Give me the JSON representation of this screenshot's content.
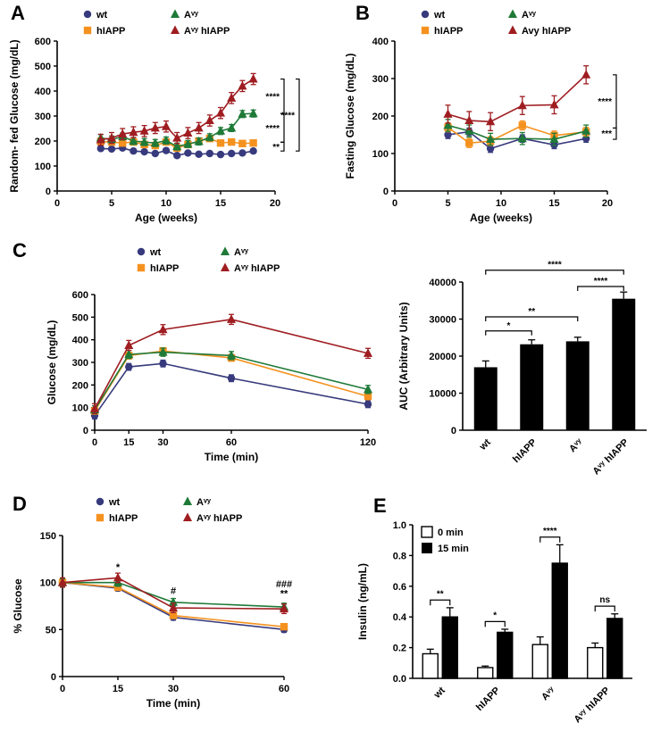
{
  "panels": {
    "A": {
      "letter": "A"
    },
    "B": {
      "letter": "B"
    },
    "C": {
      "letter": "C"
    },
    "D": {
      "letter": "D"
    },
    "E": {
      "letter": "E"
    }
  },
  "colors": {
    "wt": "#373a7c",
    "hIAPP": "#f5921f",
    "avy": "#1f7a38",
    "avy_hiapp": "#9f1d21",
    "bar_fill": "#000000",
    "background": "#ffffff"
  },
  "chart_data": [
    {
      "id": "A",
      "type": "line",
      "ylabel": "Random- fed Glucose (mg/dL)",
      "xlabel": "Age (weeks)",
      "xlim": [
        0,
        20
      ],
      "ylim": [
        0,
        600
      ],
      "xticks": [
        0,
        5,
        10,
        15,
        20
      ],
      "yticks": [
        0,
        100,
        200,
        300,
        400,
        500,
        600
      ],
      "legend_position": "top",
      "x": [
        4,
        5,
        6,
        7,
        8,
        9,
        10,
        11,
        12,
        13,
        14,
        15,
        16,
        17,
        18
      ],
      "series": [
        {
          "name": "wt",
          "marker": "circle",
          "color": "#373a7c",
          "err": 8,
          "values": [
            170,
            168,
            172,
            160,
            157,
            150,
            162,
            142,
            152,
            147,
            150,
            146,
            150,
            152,
            160
          ]
        },
        {
          "name": "hIAPP",
          "marker": "square",
          "color": "#f5921f",
          "err": 10,
          "values": [
            198,
            196,
            192,
            196,
            186,
            182,
            196,
            172,
            186,
            200,
            210,
            192,
            196,
            190,
            192
          ]
        },
        {
          "name": "Aᵛʸ",
          "marker": "triangle",
          "color": "#1f7a38",
          "err": 14,
          "values": [
            212,
            206,
            218,
            200,
            196,
            192,
            202,
            178,
            188,
            198,
            215,
            240,
            252,
            308,
            310
          ]
        },
        {
          "name": "Aᵛʸ hIAPP",
          "marker": "triangle",
          "color": "#9f1d21",
          "err": 22,
          "values": [
            205,
            212,
            228,
            235,
            240,
            252,
            258,
            212,
            232,
            252,
            282,
            312,
            372,
            420,
            448
          ]
        }
      ],
      "brackets": [
        {
          "y1": 448,
          "y2": 310,
          "tier": 1,
          "label": "****"
        },
        {
          "y1": 310,
          "y2": 195,
          "tier": 1,
          "label": "****"
        },
        {
          "y1": 195,
          "y2": 160,
          "tier": 1,
          "label": "**"
        },
        {
          "y1": 448,
          "y2": 160,
          "tier": 2,
          "label": "****"
        }
      ]
    },
    {
      "id": "B",
      "type": "line",
      "ylabel": "Fasting Glucose (mg/dL)",
      "xlabel": "Age (weeks)",
      "xlim": [
        0,
        20
      ],
      "ylim": [
        0,
        400
      ],
      "xticks": [
        0,
        5,
        10,
        15,
        20
      ],
      "yticks": [
        0,
        100,
        200,
        300,
        400
      ],
      "legend_position": "top",
      "x": [
        5,
        7,
        9,
        12,
        15,
        18
      ],
      "series": [
        {
          "name": "wt",
          "marker": "circle",
          "color": "#373a7c",
          "err": 10,
          "values": [
            150,
            158,
            113,
            140,
            123,
            140
          ]
        },
        {
          "name": "hIAPP",
          "marker": "square",
          "color": "#f5921f",
          "err": 12,
          "values": [
            170,
            128,
            133,
            175,
            148,
            158
          ]
        },
        {
          "name": "Aᵛʸ",
          "marker": "triangle",
          "color": "#1f7a38",
          "err": 16,
          "values": [
            175,
            160,
            138,
            140,
            138,
            160
          ]
        },
        {
          "name": "Avy hIAPP",
          "marker": "triangle",
          "color": "#9f1d21",
          "err": 24,
          "values": [
            205,
            188,
            185,
            228,
            230,
            310
          ]
        }
      ],
      "brackets": [
        {
          "y1": 310,
          "y2": 168,
          "tier": 1,
          "label": "****"
        },
        {
          "y1": 168,
          "y2": 138,
          "tier": 1,
          "label": "***"
        }
      ]
    },
    {
      "id": "C1",
      "type": "line",
      "ylabel": "Glucose (mg/dL)",
      "xlabel": "Time (min)",
      "xlim": [
        0,
        120
      ],
      "ylim": [
        0,
        600
      ],
      "xticks": [
        0,
        15,
        30,
        60,
        120
      ],
      "yticks": [
        0,
        100,
        200,
        300,
        400,
        500,
        600
      ],
      "legend_position": "top",
      "x": [
        0,
        15,
        30,
        60,
        120
      ],
      "series": [
        {
          "name": "wt",
          "marker": "circle",
          "color": "#373a7c",
          "err": 15,
          "values": [
            65,
            280,
            295,
            230,
            115
          ]
        },
        {
          "name": "hIAPP",
          "marker": "square",
          "color": "#f5921f",
          "err": 15,
          "values": [
            85,
            330,
            350,
            320,
            150
          ]
        },
        {
          "name": "Aᵛʸ",
          "marker": "triangle",
          "color": "#1f7a38",
          "err": 18,
          "values": [
            90,
            335,
            345,
            330,
            180
          ]
        },
        {
          "name": "Aᵛʸ hIAPP",
          "marker": "triangle",
          "color": "#9f1d21",
          "err": 22,
          "values": [
            95,
            375,
            445,
            490,
            340
          ]
        }
      ],
      "brackets": []
    },
    {
      "id": "C2",
      "type": "bar",
      "ylabel": "AUC (Arbitrary Units)",
      "xlabel": "",
      "ylim": [
        0,
        40000
      ],
      "yticks": [
        0,
        10000,
        20000,
        30000,
        40000
      ],
      "categories": [
        "wt",
        "hIAPP",
        "Aᵛʸ",
        "Aᵛʸ hIAPP"
      ],
      "values": [
        17000,
        23200,
        24000,
        35500
      ],
      "errors": [
        1700,
        1200,
        1100,
        1800
      ],
      "bar_color": "#000000",
      "brackets": [
        {
          "i1": 0,
          "i2": 1,
          "y": 26800,
          "label": "*"
        },
        {
          "i1": 0,
          "i2": 2,
          "y": 30600,
          "label": "**"
        },
        {
          "i1": 2,
          "i2": 3,
          "y": 38800,
          "label": "****"
        },
        {
          "i1": 0,
          "i2": 3,
          "y": 43200,
          "label": "****"
        }
      ]
    },
    {
      "id": "D",
      "type": "line",
      "ylabel": "% Glucose",
      "xlabel": "Time (min)",
      "xlim": [
        0,
        60
      ],
      "ylim": [
        0,
        150
      ],
      "xticks": [
        0,
        15,
        30,
        60
      ],
      "yticks": [
        0,
        50,
        100,
        150
      ],
      "legend_position": "top",
      "x": [
        0,
        15,
        30,
        60
      ],
      "series": [
        {
          "name": "wt",
          "marker": "circle",
          "color": "#373a7c",
          "err": 3,
          "values": [
            100,
            94,
            63,
            50
          ]
        },
        {
          "name": "hIAPP",
          "marker": "square",
          "color": "#f5921f",
          "err": 3,
          "values": [
            100,
            95,
            65,
            53
          ]
        },
        {
          "name": "Aᵛʸ",
          "marker": "triangle",
          "color": "#1f7a38",
          "err": 4,
          "values": [
            100,
            100,
            79,
            74
          ]
        },
        {
          "name": "Aᵛʸ hIAPP",
          "marker": "triangle",
          "color": "#9f1d21",
          "err": 5,
          "values": [
            100,
            105,
            73,
            72
          ]
        }
      ],
      "annotations": [
        {
          "x": 15,
          "y": 113,
          "label": "*"
        },
        {
          "x": 30,
          "y": 88,
          "label": "#"
        },
        {
          "x": 60,
          "y": 95,
          "label": "###"
        },
        {
          "x": 60,
          "y": 85,
          "label": "**"
        }
      ],
      "brackets": []
    },
    {
      "id": "E",
      "type": "grouped_bar",
      "ylabel": "Insulin (ng/mL)",
      "xlabel": "",
      "ylim": [
        0,
        1.0
      ],
      "yticks": [
        0,
        0.2,
        0.4,
        0.6,
        0.8,
        1.0
      ],
      "ydp": 1,
      "legend_position": "top-left",
      "categories": [
        "wt",
        "hIAPP",
        "Aᵛʸ",
        "Aᵛʸ hIAPP"
      ],
      "series": [
        {
          "name": "0 min",
          "fill": "#ffffff",
          "values": [
            0.16,
            0.07,
            0.22,
            0.2
          ],
          "errors": [
            0.03,
            0.01,
            0.05,
            0.03
          ]
        },
        {
          "name": "15 min",
          "fill": "#000000",
          "values": [
            0.4,
            0.3,
            0.75,
            0.39
          ],
          "errors": [
            0.06,
            0.02,
            0.12,
            0.03
          ]
        }
      ],
      "brackets": [
        {
          "group": 0,
          "label": "**"
        },
        {
          "group": 1,
          "label": "*"
        },
        {
          "group": 2,
          "label": "****"
        },
        {
          "group": 3,
          "label": "ns"
        }
      ]
    }
  ]
}
